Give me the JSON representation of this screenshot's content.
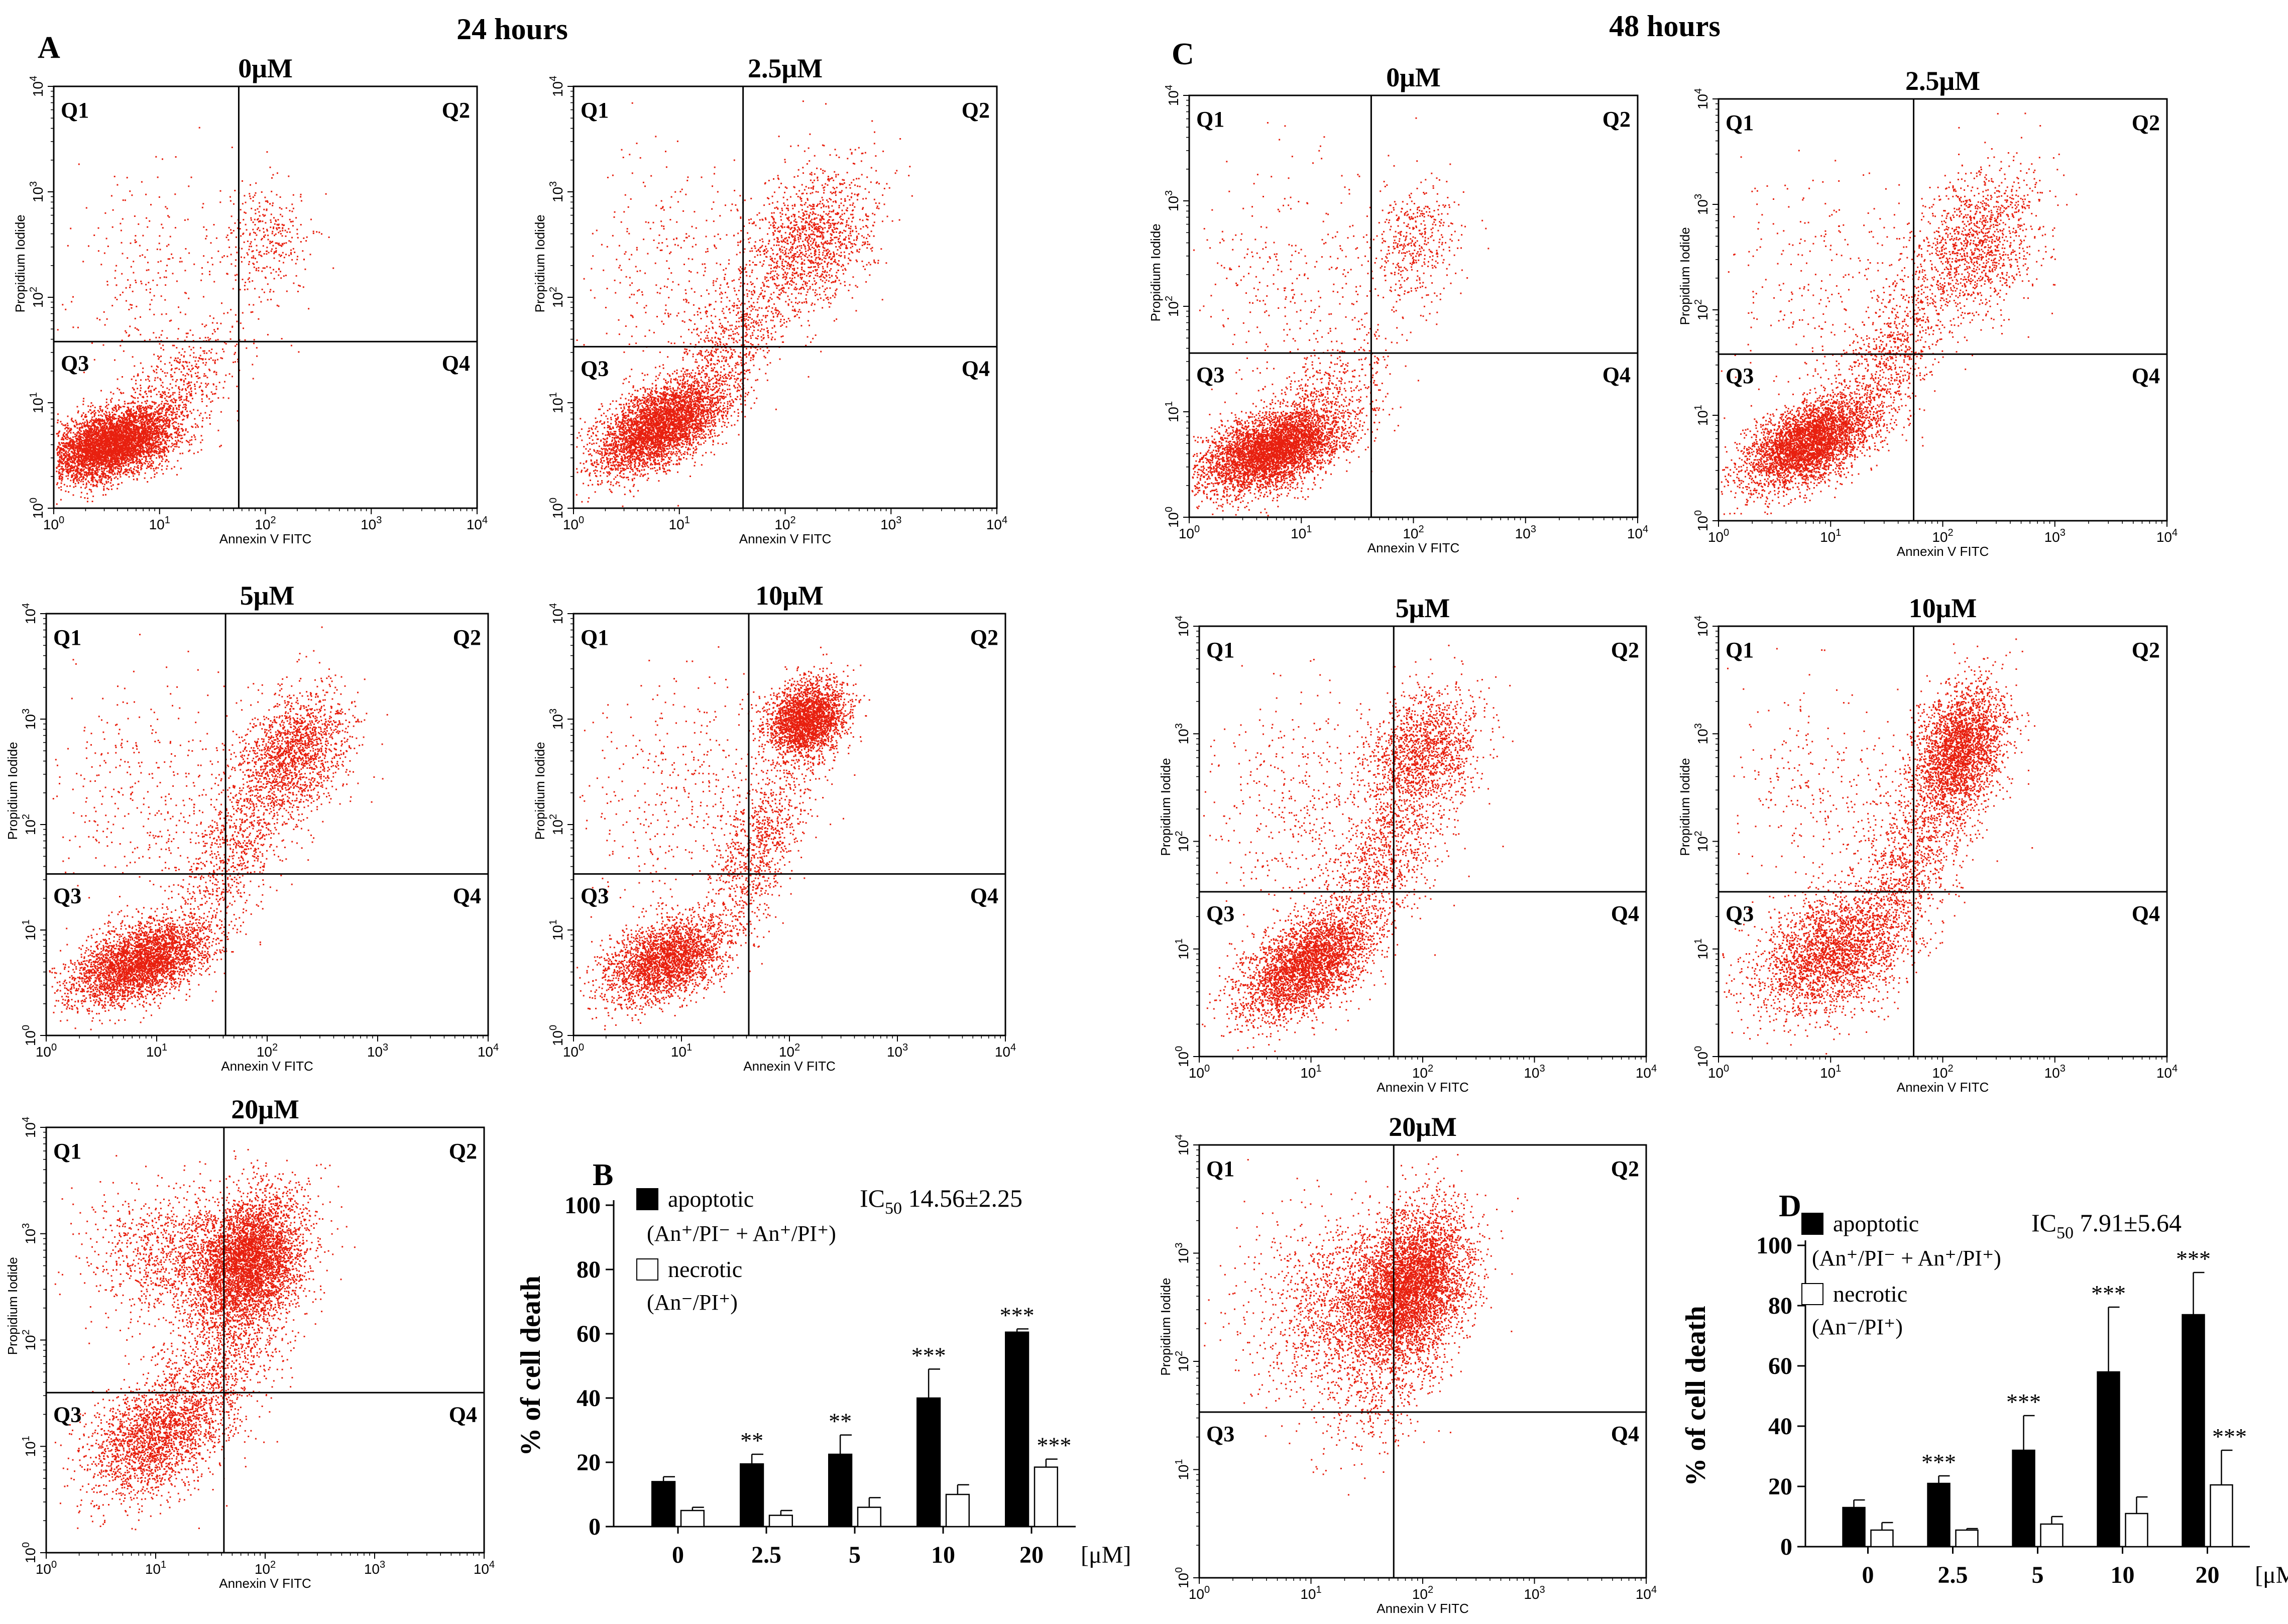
{
  "panels": {
    "A": {
      "letter": "A",
      "time": "24 hours"
    },
    "C": {
      "letter": "C",
      "time": "48 hours"
    }
  },
  "flow": {
    "axis_min_exp": 0,
    "axis_max_exp": 4,
    "xlabel": "Annexin V FITC",
    "ylabel": "Propidium Iodide",
    "quadrants": [
      "Q1",
      "Q2",
      "Q3",
      "Q4"
    ],
    "dot_color": "#e8200f"
  },
  "chart_data": [
    {
      "type": "scatter",
      "panel": "A",
      "title": "0μM",
      "gate": {
        "x": 56,
        "y": 38
      },
      "populations": [
        {
          "cx": 0.55,
          "cy": 0.62,
          "sx": 0.3,
          "sy": 0.18,
          "rho": 0.45,
          "n": 5000
        },
        {
          "cx": 2.0,
          "cy": 2.55,
          "sx": 0.22,
          "sy": 0.3,
          "rho": 0.1,
          "n": 350
        },
        {
          "cx": 1.2,
          "cy": 1.2,
          "sx": 0.3,
          "sy": 0.3,
          "rho": 0.6,
          "n": 450
        },
        {
          "cx": 0.9,
          "cy": 2.2,
          "sx": 0.4,
          "sy": 0.55,
          "rho": 0,
          "n": 250
        }
      ]
    },
    {
      "type": "scatter",
      "panel": "A",
      "title": "2.5μM",
      "gate": {
        "x": 40,
        "y": 34
      },
      "populations": [
        {
          "cx": 0.8,
          "cy": 0.78,
          "sx": 0.3,
          "sy": 0.22,
          "rho": 0.55,
          "n": 4200
        },
        {
          "cx": 2.25,
          "cy": 2.55,
          "sx": 0.3,
          "sy": 0.35,
          "rho": 0.3,
          "n": 1400
        },
        {
          "cx": 1.5,
          "cy": 1.6,
          "sx": 0.28,
          "sy": 0.4,
          "rho": 0.6,
          "n": 700
        },
        {
          "cx": 0.9,
          "cy": 2.3,
          "sx": 0.45,
          "sy": 0.55,
          "rho": 0,
          "n": 300
        }
      ]
    },
    {
      "type": "scatter",
      "panel": "A",
      "title": "5μM",
      "gate": {
        "x": 42,
        "y": 34
      },
      "populations": [
        {
          "cx": 0.85,
          "cy": 0.7,
          "sx": 0.32,
          "sy": 0.2,
          "rho": 0.5,
          "n": 3600
        },
        {
          "cx": 2.25,
          "cy": 2.7,
          "sx": 0.25,
          "sy": 0.3,
          "rho": 0.3,
          "n": 1600
        },
        {
          "cx": 1.7,
          "cy": 1.85,
          "sx": 0.28,
          "sy": 0.45,
          "rho": 0.6,
          "n": 900
        },
        {
          "cx": 0.9,
          "cy": 2.3,
          "sx": 0.45,
          "sy": 0.55,
          "rho": 0,
          "n": 350
        }
      ]
    },
    {
      "type": "scatter",
      "panel": "A",
      "title": "10μM",
      "gate": {
        "x": 42,
        "y": 34
      },
      "populations": [
        {
          "cx": 0.85,
          "cy": 0.72,
          "sx": 0.28,
          "sy": 0.2,
          "rho": 0.4,
          "n": 2600
        },
        {
          "cx": 2.15,
          "cy": 3.0,
          "sx": 0.18,
          "sy": 0.18,
          "rho": 0.2,
          "n": 2600
        },
        {
          "cx": 1.7,
          "cy": 1.8,
          "sx": 0.25,
          "sy": 0.45,
          "rho": 0.65,
          "n": 900
        },
        {
          "cx": 1.0,
          "cy": 2.3,
          "sx": 0.5,
          "sy": 0.55,
          "rho": 0,
          "n": 400
        }
      ]
    },
    {
      "type": "scatter",
      "panel": "A",
      "title": "20μM",
      "gate": {
        "x": 42,
        "y": 32
      },
      "populations": [
        {
          "cx": 1.0,
          "cy": 1.1,
          "sx": 0.32,
          "sy": 0.3,
          "rho": 0.4,
          "n": 2200
        },
        {
          "cx": 1.85,
          "cy": 2.75,
          "sx": 0.25,
          "sy": 0.32,
          "rho": 0.3,
          "n": 4200
        },
        {
          "cx": 1.3,
          "cy": 2.8,
          "sx": 0.45,
          "sy": 0.3,
          "rho": 0,
          "n": 1300
        },
        {
          "cx": 1.6,
          "cy": 1.8,
          "sx": 0.3,
          "sy": 0.4,
          "rho": 0.5,
          "n": 800
        }
      ]
    },
    {
      "type": "scatter",
      "panel": "C",
      "title": "0μM",
      "gate": {
        "x": 42,
        "y": 36
      },
      "populations": [
        {
          "cx": 0.75,
          "cy": 0.65,
          "sx": 0.32,
          "sy": 0.2,
          "rho": 0.45,
          "n": 4800
        },
        {
          "cx": 2.0,
          "cy": 2.6,
          "sx": 0.22,
          "sy": 0.3,
          "rho": 0.1,
          "n": 450
        },
        {
          "cx": 1.25,
          "cy": 1.2,
          "sx": 0.3,
          "sy": 0.3,
          "rho": 0.6,
          "n": 400
        },
        {
          "cx": 0.9,
          "cy": 2.3,
          "sx": 0.45,
          "sy": 0.55,
          "rho": 0,
          "n": 300
        }
      ]
    },
    {
      "type": "scatter",
      "panel": "C",
      "title": "2.5μM",
      "gate": {
        "x": 55,
        "y": 38
      },
      "populations": [
        {
          "cx": 0.8,
          "cy": 0.75,
          "sx": 0.3,
          "sy": 0.22,
          "rho": 0.55,
          "n": 4000
        },
        {
          "cx": 2.3,
          "cy": 2.65,
          "sx": 0.28,
          "sy": 0.35,
          "rho": 0.3,
          "n": 1300
        },
        {
          "cx": 1.55,
          "cy": 1.6,
          "sx": 0.28,
          "sy": 0.4,
          "rho": 0.6,
          "n": 700
        },
        {
          "cx": 0.9,
          "cy": 2.3,
          "sx": 0.45,
          "sy": 0.55,
          "rho": 0,
          "n": 250
        }
      ]
    },
    {
      "type": "scatter",
      "panel": "C",
      "title": "5μM",
      "gate": {
        "x": 55,
        "y": 34
      },
      "populations": [
        {
          "cx": 0.95,
          "cy": 0.85,
          "sx": 0.3,
          "sy": 0.25,
          "rho": 0.55,
          "n": 3300
        },
        {
          "cx": 2.0,
          "cy": 2.85,
          "sx": 0.25,
          "sy": 0.28,
          "rho": 0.2,
          "n": 1400
        },
        {
          "cx": 1.65,
          "cy": 1.85,
          "sx": 0.28,
          "sy": 0.45,
          "rho": 0.6,
          "n": 900
        },
        {
          "cx": 1.0,
          "cy": 2.3,
          "sx": 0.5,
          "sy": 0.55,
          "rho": 0,
          "n": 500
        }
      ]
    },
    {
      "type": "scatter",
      "panel": "C",
      "title": "10μM",
      "gate": {
        "x": 55,
        "y": 34
      },
      "populations": [
        {
          "cx": 1.0,
          "cy": 0.95,
          "sx": 0.35,
          "sy": 0.28,
          "rho": 0.4,
          "n": 2600
        },
        {
          "cx": 2.15,
          "cy": 2.85,
          "sx": 0.2,
          "sy": 0.3,
          "rho": 0.3,
          "n": 2700
        },
        {
          "cx": 1.75,
          "cy": 1.9,
          "sx": 0.25,
          "sy": 0.4,
          "rho": 0.5,
          "n": 900
        },
        {
          "cx": 1.0,
          "cy": 2.4,
          "sx": 0.5,
          "sy": 0.55,
          "rho": 0,
          "n": 350
        }
      ]
    },
    {
      "type": "scatter",
      "panel": "C",
      "title": "20μM",
      "gate": {
        "x": 55,
        "y": 34
      },
      "populations": [
        {
          "cx": 1.9,
          "cy": 2.7,
          "sx": 0.25,
          "sy": 0.35,
          "rho": 0.3,
          "n": 4500
        },
        {
          "cx": 1.4,
          "cy": 2.5,
          "sx": 0.4,
          "sy": 0.4,
          "rho": 0.3,
          "n": 1500
        },
        {
          "cx": 1.6,
          "cy": 1.8,
          "sx": 0.3,
          "sy": 0.35,
          "rho": 0.4,
          "n": 400
        },
        {
          "cx": 1.0,
          "cy": 2.8,
          "sx": 0.4,
          "sy": 0.35,
          "rho": 0,
          "n": 200
        }
      ]
    },
    {
      "type": "bar",
      "panel": "B",
      "letter": "B",
      "ylabel": "% of cell death",
      "xunit": "[μM]",
      "ylim": [
        0,
        100
      ],
      "yticks": [
        0,
        20,
        40,
        60,
        80,
        100
      ],
      "categories": [
        "0",
        "2.5",
        "5",
        "10",
        "20"
      ],
      "ic50": {
        "prefix": "IC",
        "sub": "50",
        "value": " 14.56±2.25"
      },
      "series": [
        {
          "name": "apoptotic",
          "fill": "#000000",
          "values": [
            14,
            19.5,
            22.5,
            40,
            60.5
          ],
          "errors": [
            1.5,
            3,
            6,
            9,
            1
          ]
        },
        {
          "name": "necrotic",
          "fill": "#ffffff",
          "values": [
            5,
            3.5,
            6,
            10,
            18.5
          ],
          "errors": [
            1,
            1.5,
            3,
            3,
            2.5
          ]
        }
      ],
      "significance": [
        [
          "",
          "**",
          "**",
          "***",
          "***"
        ],
        [
          "",
          "",
          "",
          "",
          "***"
        ]
      ]
    },
    {
      "type": "bar",
      "panel": "D",
      "letter": "D",
      "ylabel": "% of cell death",
      "xunit": "[μM]",
      "ylim": [
        0,
        100
      ],
      "yticks": [
        0,
        20,
        40,
        60,
        80,
        100
      ],
      "categories": [
        "0",
        "2.5",
        "5",
        "10",
        "20"
      ],
      "ic50": {
        "prefix": "IC",
        "sub": "50",
        "value": " 7.91±5.64"
      },
      "series": [
        {
          "name": "apoptotic",
          "fill": "#000000",
          "values": [
            13,
            21,
            32,
            58,
            77
          ],
          "errors": [
            2.5,
            2.5,
            11.5,
            21.5,
            14
          ]
        },
        {
          "name": "necrotic",
          "fill": "#ffffff",
          "values": [
            5.5,
            5.5,
            7.5,
            11,
            20.5
          ],
          "errors": [
            2.5,
            0.5,
            2.5,
            5.5,
            11.5
          ]
        }
      ],
      "significance": [
        [
          "",
          "***",
          "***",
          "***",
          "***"
        ],
        [
          "",
          "",
          "",
          "",
          "***"
        ]
      ]
    }
  ],
  "legend": {
    "apoptotic_label": "apoptotic",
    "apoptotic_formula": "(An⁺/PI⁻ + An⁺/PI⁺)",
    "necrotic_label": "necrotic",
    "necrotic_formula": "(An⁻/PI⁺)"
  }
}
